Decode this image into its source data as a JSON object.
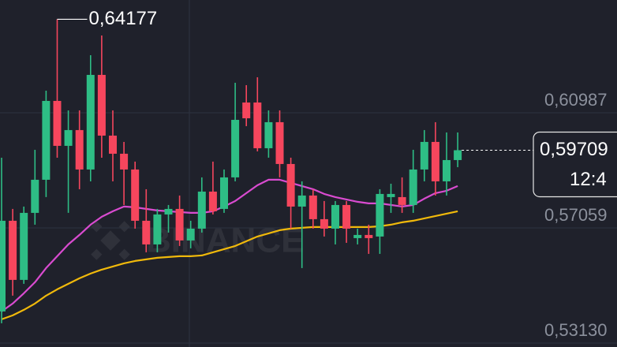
{
  "chart_data": {
    "type": "candlestick",
    "watermark": "BINANCE",
    "up_color": "#2ebd85",
    "down_color": "#f6465d",
    "ylim": [
      0.52995,
      0.64834
    ],
    "yticks": [
      {
        "value": 0.60987,
        "label": "0,60987"
      },
      {
        "value": 0.57059,
        "label": "0,57059"
      },
      {
        "value": 0.5313,
        "label": "0,53130"
      }
    ],
    "grid": true,
    "open": [
      0.54209,
      0.57302,
      0.55285,
      0.57571,
      0.58701,
      0.61391,
      0.59858,
      0.60396,
      0.59051,
      0.62279,
      0.60207,
      0.59589,
      0.59051,
      0.57302,
      0.56495,
      0.57517,
      0.57706,
      0.5663,
      0.57033,
      0.58297,
      0.57706,
      0.58782,
      0.61337,
      0.61337,
      0.59777,
      0.60665,
      0.59239,
      0.57786,
      0.58163,
      0.57356,
      0.57033,
      0.5784,
      0.5671,
      0.56818,
      0.56764,
      0.58109,
      0.58109,
      0.5784,
      0.59051,
      0.59992,
      0.58647,
      0.59373
    ],
    "high": [
      0.59454,
      0.57706,
      0.57786,
      0.59723,
      0.61741,
      0.64177,
      0.61068,
      0.61068,
      0.62951,
      0.63624,
      0.61068,
      0.59992,
      0.5932,
      0.58378,
      0.57706,
      0.5784,
      0.58163,
      0.57302,
      0.58782,
      0.5932,
      0.59051,
      0.6201,
      0.61929,
      0.62198,
      0.61068,
      0.61068,
      0.59454,
      0.58647,
      0.58378,
      0.57975,
      0.57975,
      0.57975,
      0.57033,
      0.57168,
      0.58378,
      0.58566,
      0.58782,
      0.59723,
      0.60396,
      0.60665,
      0.60315,
      0.60315
    ],
    "low": [
      0.53805,
      0.54747,
      0.5515,
      0.57168,
      0.58109,
      0.59454,
      0.57571,
      0.58378,
      0.58647,
      0.59454,
      0.58647,
      0.5784,
      0.57033,
      0.56226,
      0.56226,
      0.56899,
      0.56441,
      0.56361,
      0.56899,
      0.57517,
      0.57571,
      0.58647,
      0.6053,
      0.59669,
      0.59454,
      0.58782,
      0.57033,
      0.55688,
      0.57033,
      0.56764,
      0.56495,
      0.56549,
      0.56495,
      0.56172,
      0.56172,
      0.57571,
      0.57571,
      0.57571,
      0.58647,
      0.58163,
      0.58163,
      0.59131
    ],
    "close": [
      0.57302,
      0.55285,
      0.57571,
      0.58701,
      0.61391,
      0.59858,
      0.60396,
      0.59051,
      0.62279,
      0.60207,
      0.59589,
      0.59051,
      0.57302,
      0.56495,
      0.57517,
      0.57706,
      0.5663,
      0.57033,
      0.58297,
      0.57625,
      0.58782,
      0.60745,
      0.60799,
      0.59777,
      0.60665,
      0.59239,
      0.57786,
      0.58163,
      0.57356,
      0.57033,
      0.5784,
      0.57033,
      0.56818,
      0.5671,
      0.58217,
      0.58217,
      0.5784,
      0.59051,
      0.59992,
      0.58647,
      0.59373,
      0.59709
    ],
    "series": [
      {
        "color": "#d94bd0",
        "values": [
          0.54209,
          0.54478,
          0.54827,
          0.55204,
          0.55688,
          0.56092,
          0.56495,
          0.56818,
          0.57168,
          0.57437,
          0.57625,
          0.57786,
          0.57759,
          0.57706,
          0.57652,
          0.57625,
          0.57598,
          0.57571,
          0.57571,
          0.57625,
          0.57786,
          0.57975,
          0.58244,
          0.58513,
          0.58701,
          0.58701,
          0.58593,
          0.58486,
          0.58378,
          0.58217,
          0.58109,
          0.58028,
          0.57948,
          0.57894,
          0.57894,
          0.5784,
          0.57786,
          0.5784,
          0.58055,
          0.58244,
          0.58324,
          0.58486
        ]
      },
      {
        "color": "#f0b90b",
        "values": [
          0.5394,
          0.54074,
          0.54262,
          0.54478,
          0.54747,
          0.54962,
          0.5515,
          0.55338,
          0.555,
          0.55634,
          0.55742,
          0.55849,
          0.5593,
          0.55984,
          0.56038,
          0.56065,
          0.56092,
          0.56092,
          0.56118,
          0.56226,
          0.56334,
          0.56441,
          0.56603,
          0.56764,
          0.56872,
          0.56979,
          0.57033,
          0.5706,
          0.57087,
          0.57087,
          0.57087,
          0.57087,
          0.57087,
          0.57087,
          0.57114,
          0.57168,
          0.57248,
          0.57302,
          0.57383,
          0.57463,
          0.57544,
          0.57625
        ]
      }
    ],
    "high_label": {
      "value": 0.64177,
      "label": "0,64177"
    },
    "last_price": {
      "value": 0.59709,
      "label": "0,59709"
    },
    "countdown": "12:4"
  }
}
